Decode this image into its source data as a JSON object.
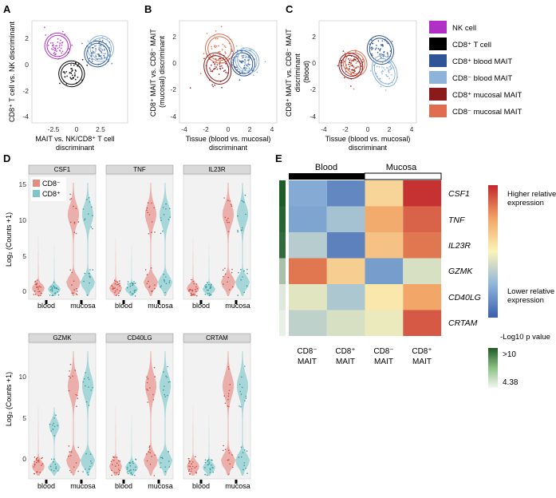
{
  "panels": {
    "A": {
      "letter": "A",
      "ylabel": [
        "CD8⁺ T cell vs. NK discriminant"
      ],
      "xlabel": [
        "MAIT vs. NK/CD8⁺ T cell",
        "discriminant"
      ],
      "xticks": [
        "-2.5",
        "0",
        "2.5"
      ],
      "yticks": [
        "2",
        "0",
        "-2",
        "-4"
      ]
    },
    "B": {
      "letter": "B",
      "ylabel": [
        "CD8⁺ MAIT vs. CD8⁻ MAIT",
        "(mucosal) discriminant"
      ],
      "xlabel": [
        "Tissue (blood vs. mucosal)",
        "discriminant"
      ],
      "xticks": [
        "-4",
        "-2",
        "0",
        "2",
        "4"
      ],
      "yticks": [
        "2",
        "0",
        "-2",
        "-4"
      ]
    },
    "C": {
      "letter": "C",
      "ylabel": [
        "CD8⁺ MAIT vs. CD8⁻ MAIT",
        "discriminant",
        "(blood)"
      ],
      "xlabel": [
        "Tissue (blood vs. mucosal)",
        "discriminant"
      ],
      "xticks": [
        "-4",
        "-2",
        "0",
        "2",
        "4"
      ],
      "yticks": [
        "2",
        "0",
        "-2",
        "-4"
      ]
    },
    "D": {
      "letter": "D",
      "ylabel": "Log₂ (Counts +1)",
      "yticks": [
        "15",
        "10",
        "5",
        "0"
      ],
      "legend": [
        {
          "label": "CD8⁻",
          "color": "#E58B82"
        },
        {
          "label": "CD8⁺",
          "color": "#7CC6C9"
        }
      ],
      "genes_top": [
        "CSF1",
        "TNF",
        "IL23R"
      ],
      "genes_bottom": [
        "GZMK",
        "CD40LG",
        "CRTAM"
      ],
      "xticks": [
        "blood",
        "mucosa"
      ]
    },
    "E": {
      "letter": "E",
      "groups": [
        "Blood",
        "Mucosa"
      ],
      "columns": [
        [
          "CD8⁻",
          "MAIT"
        ],
        [
          "CD8⁺",
          "MAIT"
        ],
        [
          "CD8⁻",
          "MAIT"
        ],
        [
          "CD8⁺",
          "MAIT"
        ]
      ],
      "rows": [
        "CSF1",
        "TNF",
        "IL23R",
        "GZMK",
        "CD40LG",
        "CRTAM"
      ],
      "colorbar_high": [
        "Higher relative",
        "expression"
      ],
      "colorbar_low": [
        "Lower relative",
        "expression"
      ],
      "pvalue_title": "-Log10 p value",
      "pvalue_high": ">10",
      "pvalue_low": "4.38"
    }
  },
  "legend": [
    {
      "label": "NK cell",
      "color": "#B02FC4"
    },
    {
      "label": "CD8⁺ T cell",
      "color": "#000000"
    },
    {
      "label": "CD8⁺ blood MAIT",
      "color": "#2F5597"
    },
    {
      "label": "CD8⁻ blood MAIT",
      "color": "#8DB3DB"
    },
    {
      "label": "CD8⁺ mucosal MAIT",
      "color": "#8B1B1B"
    },
    {
      "label": "CD8⁻ mucosal MAIT",
      "color": "#E06D50"
    }
  ],
  "chart_data": [
    {
      "type": "scatter",
      "panel": "A",
      "xlim": [
        -4,
        4.2
      ],
      "ylim": [
        -4.5,
        3.2
      ],
      "groups": [
        {
          "name": "NK cell",
          "color": "#B02FC4",
          "center": [
            -1.8,
            1.3
          ],
          "spread": [
            0.9,
            0.8
          ]
        },
        {
          "name": "CD8⁺ T cell",
          "color": "#000000",
          "center": [
            -0.6,
            -0.8
          ],
          "spread": [
            0.9,
            0.8
          ]
        },
        {
          "name": "CD8⁺ blood MAIT",
          "color": "#2F5597",
          "center": [
            1.6,
            0.7
          ],
          "spread": [
            0.9,
            0.8
          ]
        },
        {
          "name": "CD8⁻ blood MAIT",
          "color": "#8DB3DB",
          "center": [
            1.9,
            1.1
          ],
          "spread": [
            0.9,
            0.8
          ]
        }
      ]
    },
    {
      "type": "scatter",
      "panel": "B",
      "xlim": [
        -4.6,
        4.6
      ],
      "ylim": [
        -4.3,
        3.4
      ],
      "groups": [
        {
          "name": "CD8⁻ mucosal MAIT",
          "color": "#E06D50",
          "center": [
            -0.8,
            1.3
          ],
          "spread": [
            1.1,
            0.9
          ]
        },
        {
          "name": "CD8⁺ mucosal MAIT",
          "color": "#8B1B1B",
          "center": [
            -1.0,
            -0.2
          ],
          "spread": [
            1.0,
            1.0
          ]
        },
        {
          "name": "CD8⁺ blood MAIT",
          "color": "#2F5597",
          "center": [
            1.4,
            0.2
          ],
          "spread": [
            0.9,
            0.8
          ]
        },
        {
          "name": "CD8⁻ blood MAIT",
          "color": "#8DB3DB",
          "center": [
            1.8,
            0.4
          ],
          "spread": [
            0.9,
            0.8
          ]
        }
      ]
    },
    {
      "type": "scatter",
      "panel": "C",
      "xlim": [
        -4.6,
        4.6
      ],
      "ylim": [
        -4.3,
        3.4
      ],
      "groups": [
        {
          "name": "CD8⁻ mucosal MAIT",
          "color": "#E06D50",
          "center": [
            -1.2,
            0.2
          ],
          "spread": [
            0.9,
            0.8
          ]
        },
        {
          "name": "CD8⁺ mucosal MAIT",
          "color": "#8B1B1B",
          "center": [
            -1.6,
            0.0
          ],
          "spread": [
            0.9,
            0.8
          ]
        },
        {
          "name": "CD8⁺ blood MAIT",
          "color": "#2F5597",
          "center": [
            1.2,
            1.2
          ],
          "spread": [
            1.0,
            0.9
          ]
        },
        {
          "name": "CD8⁻ blood MAIT",
          "color": "#8DB3DB",
          "center": [
            1.6,
            -0.4
          ],
          "spread": [
            0.9,
            1.0
          ]
        }
      ]
    },
    {
      "type": "heatmap",
      "panel": "E",
      "rows": [
        "CSF1",
        "TNF",
        "IL23R",
        "GZMK",
        "CD40LG",
        "CRTAM"
      ],
      "columns": [
        "CD8⁻ MAIT (Blood)",
        "CD8⁺ MAIT (Blood)",
        "CD8⁻ MAIT (Mucosa)",
        "CD8⁺ MAIT (Mucosa)"
      ],
      "values": [
        [
          0.22,
          0.12,
          0.6,
          0.98
        ],
        [
          0.2,
          0.3,
          0.73,
          0.88
        ],
        [
          0.34,
          0.1,
          0.66,
          0.84
        ],
        [
          0.84,
          0.62,
          0.18,
          0.42
        ],
        [
          0.44,
          0.32,
          0.54,
          0.74
        ],
        [
          0.36,
          0.42,
          0.46,
          0.9
        ]
      ],
      "row_pvalue": [
        1.0,
        0.95,
        0.9,
        0.35,
        0.1,
        0.05
      ],
      "colorbar": {
        "high": "Higher relative expression",
        "low": "Lower relative expression"
      }
    }
  ]
}
